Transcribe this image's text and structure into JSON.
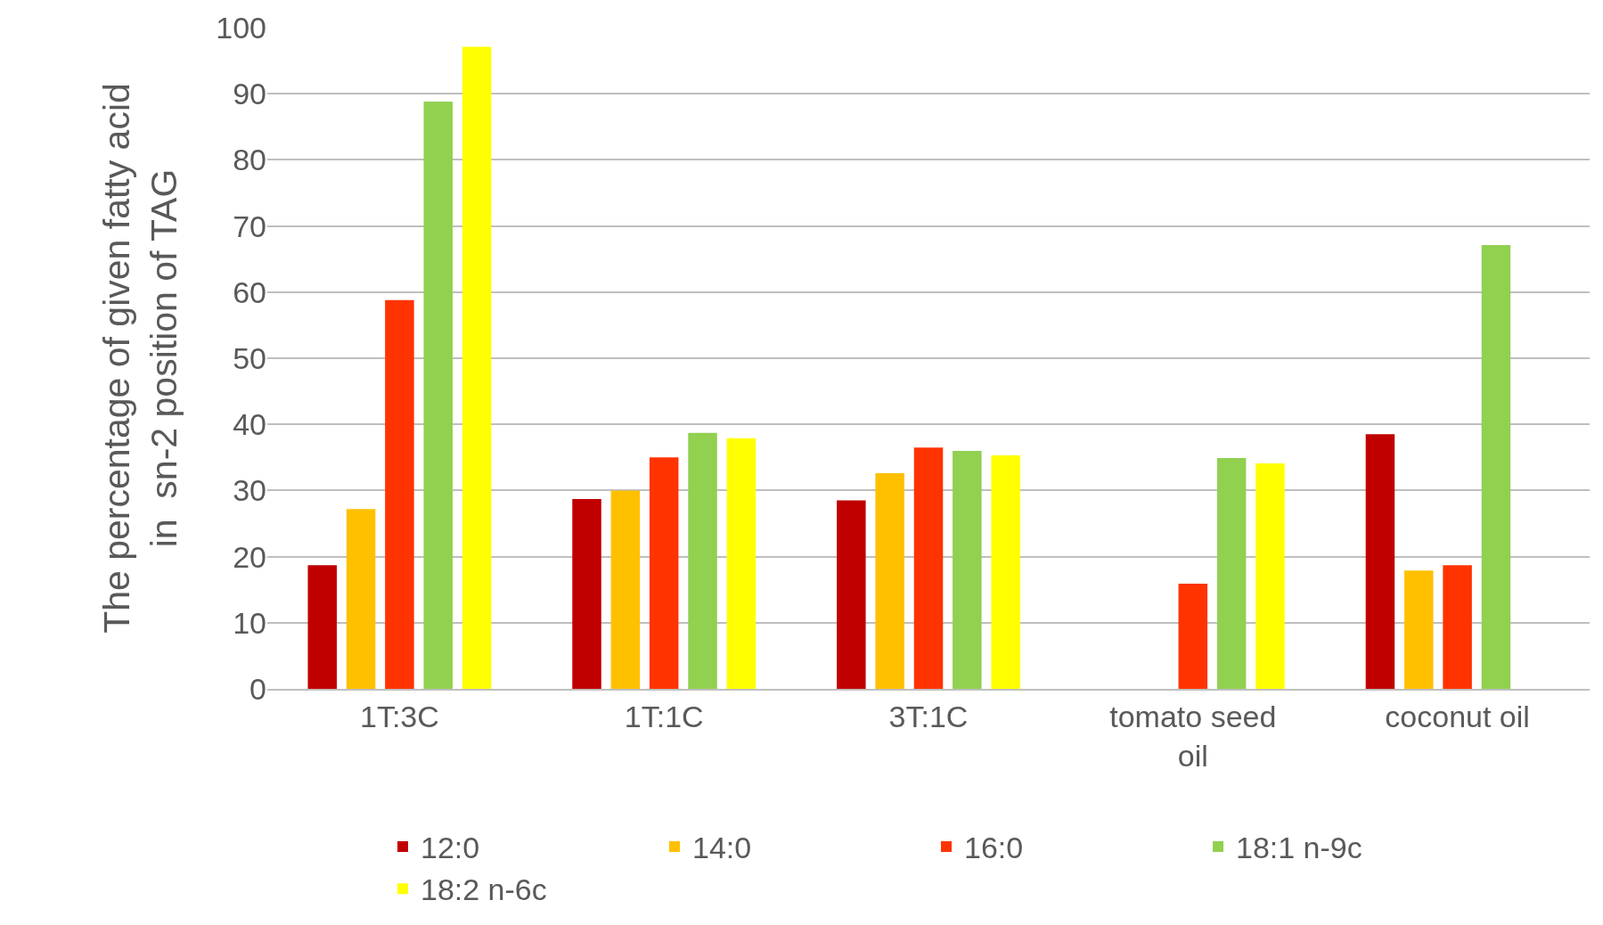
{
  "chart_data": {
    "type": "bar",
    "ylabel": "The percentage of given fatty acid\nin  sn-2 position of TAG",
    "categories": [
      "1T:3C",
      "1T:1C",
      "3T:1C",
      "tomato seed oil",
      "coconut oil"
    ],
    "series": [
      {
        "name": "12:0",
        "color": "#c00000",
        "values": [
          18.7,
          28.7,
          28.5,
          null,
          38.5
        ]
      },
      {
        "name": "14:0",
        "color": "#ffc000",
        "values": [
          27.2,
          30.0,
          32.6,
          null,
          17.9
        ]
      },
      {
        "name": "16:0",
        "color": "#ff3300",
        "values": [
          58.8,
          35.0,
          36.5,
          15.9,
          18.7
        ]
      },
      {
        "name": "18:1 n-9c",
        "color": "#92d050",
        "values": [
          88.8,
          38.7,
          36.0,
          34.9,
          67.1
        ]
      },
      {
        "name": "18:2 n-6c",
        "color": "#ffff00",
        "values": [
          97.1,
          37.9,
          35.3,
          34.1,
          null
        ]
      }
    ],
    "ylim": [
      0,
      100
    ],
    "yticks": [
      0,
      10,
      20,
      30,
      40,
      50,
      60,
      70,
      80,
      90,
      100
    ],
    "grid": "y",
    "legend": "bottom"
  }
}
